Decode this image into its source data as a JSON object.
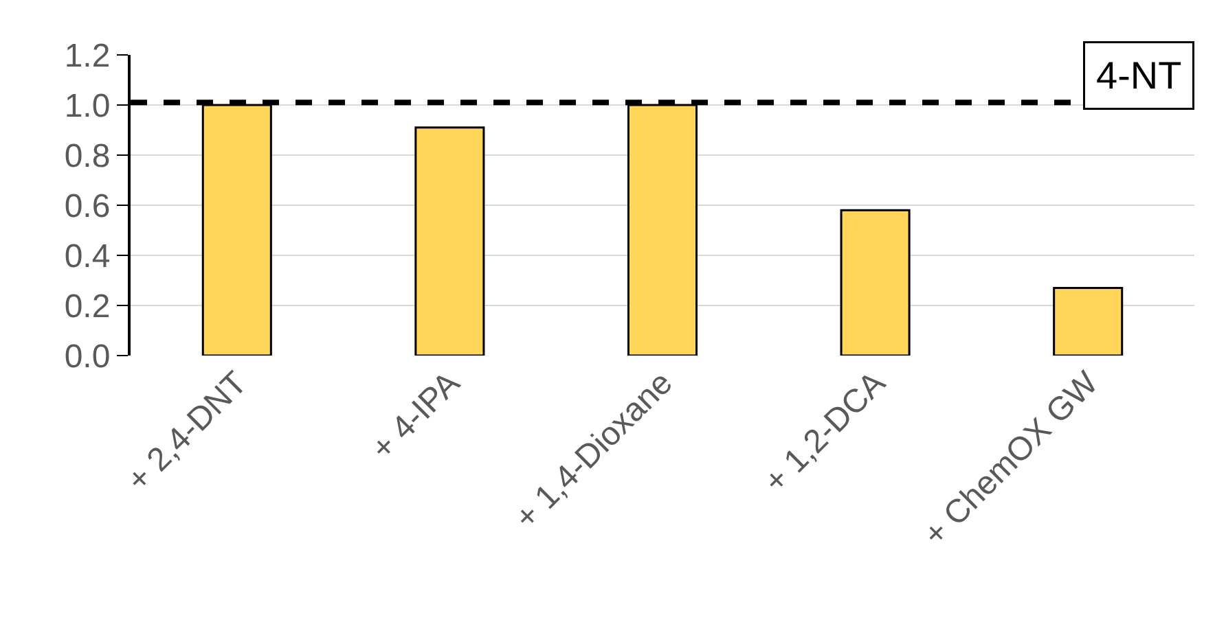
{
  "chart_data": {
    "type": "bar",
    "categories": [
      "+ 2,4-DNT",
      "+ 4-IPA",
      "+ 1,4-Dioxane",
      "+ 1,2-DCA",
      "+ ChemOX GW"
    ],
    "values": [
      1.0,
      0.91,
      1.0,
      0.58,
      0.27
    ],
    "color": "#ffd55a",
    "ylim": [
      0,
      1.2
    ],
    "yticks": [
      {
        "value": 0,
        "label": "0.0"
      },
      {
        "value": 0.2,
        "label": "0.2"
      },
      {
        "value": 0.4,
        "label": "0.4"
      },
      {
        "value": 0.6,
        "label": "0.6"
      },
      {
        "value": 0.8,
        "label": "0.8"
      },
      {
        "value": 1.0,
        "label": "1.0"
      },
      {
        "value": 1.2,
        "label": "1.2"
      }
    ],
    "grid": "y",
    "ref_lines": [
      {
        "axis": "y",
        "value": 1.01,
        "color": "#000000",
        "line_style": "dashed"
      }
    ],
    "annotations": [
      "4-NT"
    ]
  }
}
